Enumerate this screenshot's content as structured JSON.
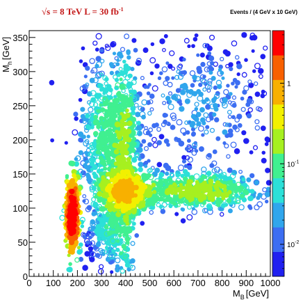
{
  "chart_data": {
    "type": "heatmap",
    "annotation_left": "√s = 8 TeV    L = 30 fb⁻¹",
    "annotation_right": "Events / (4 GeV x 10 GeV)",
    "xlabel": "M_B [GeV]",
    "xlabel_main": "M",
    "xlabel_sub": "B",
    "xlabel_unit": "[GeV]",
    "ylabel": "M_h [GeV]",
    "ylabel_main": "M",
    "ylabel_sub": "h",
    "ylabel_unit": "[GeV]",
    "xlim": [
      0,
      1000
    ],
    "ylim": [
      0,
      360
    ],
    "x_ticks": [
      0,
      100,
      200,
      300,
      400,
      500,
      600,
      700,
      800,
      900,
      1000
    ],
    "y_ticks": [
      0,
      50,
      100,
      150,
      200,
      250,
      300,
      350
    ],
    "z_scale": "log",
    "z_ticks": [
      {
        "value": 0.01,
        "label_base": "10",
        "label_exp": "-2"
      },
      {
        "value": 0.1,
        "label_base": "10",
        "label_exp": "-1"
      },
      {
        "value": 1,
        "label_base": "1",
        "label_exp": ""
      }
    ],
    "z_range": [
      0.004,
      4.5
    ],
    "palette": [
      "#2020f0",
      "#3c6ef2",
      "#30a6ec",
      "#2ce0d8",
      "#40f090",
      "#a6f020",
      "#f2f000",
      "#f8b000",
      "#f86000",
      "#ff0000"
    ],
    "clusters": [
      {
        "name": "low-mass peak",
        "x": 180,
        "y": 90,
        "sx": 14,
        "sy": 28,
        "peak": 3.5,
        "count": 360
      },
      {
        "name": "central ridge",
        "x": 400,
        "y": 125,
        "sx": 55,
        "sy": 16,
        "peak": 0.55,
        "count": 520
      },
      {
        "name": "horizontal tail",
        "x": 700,
        "y": 125,
        "sx": 130,
        "sy": 14,
        "peak": 0.18,
        "count": 520
      },
      {
        "name": "diagonal band",
        "x": 330,
        "y": 210,
        "sx": 60,
        "sy": 55,
        "peak": 0.09,
        "count": 620
      },
      {
        "name": "vertical band",
        "x": 400,
        "y": 150,
        "sx": 25,
        "sy": 90,
        "peak": 0.12,
        "count": 300
      },
      {
        "name": "lower lobe",
        "x": 330,
        "y": 65,
        "sx": 45,
        "sy": 28,
        "peak": 0.05,
        "count": 260
      },
      {
        "name": "upper scatter",
        "x": 700,
        "y": 250,
        "sx": 180,
        "sy": 60,
        "peak": 0.02,
        "count": 420
      }
    ]
  }
}
